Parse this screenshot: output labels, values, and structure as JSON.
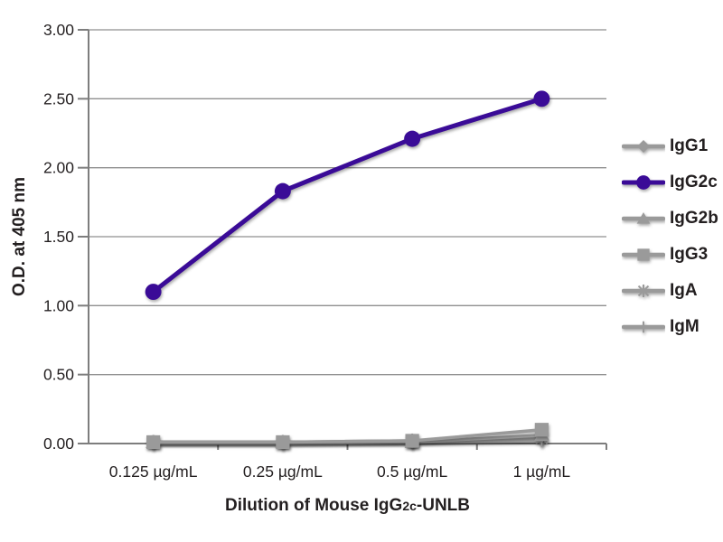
{
  "chart_data": {
    "type": "line",
    "title": "",
    "xlabel": "Dilution of Mouse IgG2c-UNLB",
    "xlabel_parts": {
      "prefix": "Dilution of Mouse IgG",
      "subscript": "2c",
      "suffix": "-UNLB"
    },
    "ylabel": "O.D. at 405 nm",
    "categories": [
      "0.125 µg/mL",
      "0.25 µg/mL",
      "0.5 µg/mL",
      "1 µg/mL"
    ],
    "ylim": [
      0,
      3
    ],
    "ytick_step": 0.5,
    "ytick_labels": [
      "0.00",
      "0.50",
      "1.00",
      "1.50",
      "2.00",
      "2.50",
      "3.00"
    ],
    "grid": "horizontal",
    "legend_position": "right",
    "series": [
      {
        "name": "IgG1",
        "marker": "diamond",
        "color": "#9a9a9a",
        "values": [
          0.01,
          0.01,
          0.01,
          0.03
        ]
      },
      {
        "name": "IgG2c",
        "marker": "circle",
        "color": "#3a0b97",
        "values": [
          1.1,
          1.83,
          2.21,
          2.5
        ]
      },
      {
        "name": "IgG2b",
        "marker": "triangle",
        "color": "#9a9a9a",
        "values": [
          0.01,
          0.01,
          0.01,
          0.06
        ]
      },
      {
        "name": "IgG3",
        "marker": "square",
        "color": "#9a9a9a",
        "values": [
          0.01,
          0.01,
          0.02,
          0.1
        ]
      },
      {
        "name": "IgA",
        "marker": "asterisk",
        "color": "#9a9a9a",
        "values": [
          0.01,
          0.01,
          0.02,
          0.04
        ]
      },
      {
        "name": "IgM",
        "marker": "dash",
        "color": "#9a9a9a",
        "values": [
          0.0,
          0.0,
          0.01,
          0.02
        ]
      }
    ],
    "draw_order": [
      0,
      4,
      5,
      2,
      3,
      1
    ]
  },
  "colors": {
    "accent_purple": "#3a0b97",
    "series_gray": "#9a9a9a",
    "gridline_gray": "#8f8f8f",
    "axis_gray": "#7d7d7d",
    "text": "#231f20",
    "background": "#ffffff"
  }
}
